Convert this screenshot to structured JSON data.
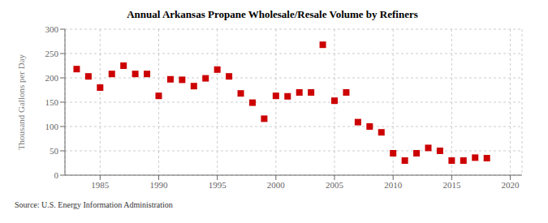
{
  "chart_data": {
    "type": "scatter",
    "title": "Annual Arkansas Propane Wholesale/Resale Volume by Refiners",
    "ylabel": "Thousand Gallons per Day",
    "source": "Source: U.S. Energy Information Administration",
    "color": "#cc0000",
    "marker": "square",
    "xlim": [
      1982,
      2021
    ],
    "ylim": [
      0,
      300
    ],
    "xticks": [
      1985,
      1990,
      1995,
      2000,
      2005,
      2010,
      2015,
      2020
    ],
    "yticks": [
      0,
      50,
      100,
      150,
      200,
      250,
      300
    ],
    "grid": true,
    "x": [
      1983,
      1984,
      1985,
      1986,
      1987,
      1988,
      1989,
      1990,
      1991,
      1992,
      1993,
      1994,
      1995,
      1996,
      1997,
      1998,
      1999,
      2000,
      2001,
      2002,
      2003,
      2004,
      2005,
      2006,
      2007,
      2008,
      2009,
      2010,
      2011,
      2012,
      2013,
      2014,
      2015,
      2016,
      2017,
      2018
    ],
    "values": [
      218,
      203,
      180,
      208,
      225,
      208,
      208,
      163,
      197,
      196,
      183,
      199,
      217,
      203,
      168,
      149,
      116,
      163,
      162,
      170,
      170,
      268,
      153,
      170,
      109,
      100,
      88,
      45,
      30,
      45,
      56,
      50,
      30,
      30,
      36,
      35
    ]
  }
}
